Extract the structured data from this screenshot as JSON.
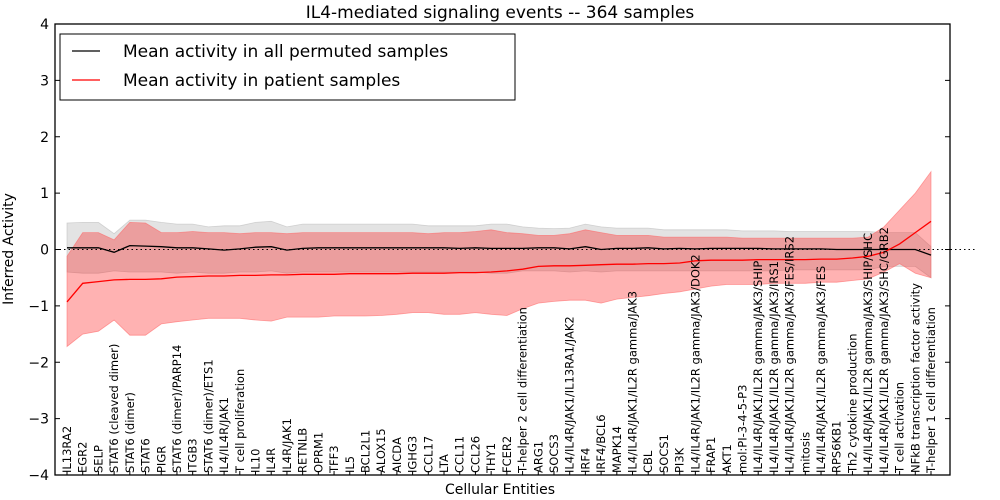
{
  "chart_data": {
    "type": "line",
    "title": "IL4-mediated signaling events -- 364 samples",
    "xlabel": "Cellular Entities",
    "ylabel": "Inferred Activity",
    "ylim": [
      -4,
      4
    ],
    "yticks": [
      "4",
      "3",
      "2",
      "1",
      "0",
      "−1",
      "−2",
      "−3",
      "−4"
    ],
    "ytick_values": [
      4,
      3,
      2,
      1,
      0,
      -1,
      -2,
      -3,
      -4
    ],
    "reference_line": 0,
    "legend": {
      "placement": "top-left",
      "entries": [
        {
          "label": "Mean activity in all permuted samples",
          "color": "#000000"
        },
        {
          "label": "Mean activity in patient samples",
          "color": "#ff0000"
        }
      ]
    },
    "categories": [
      "IL13RA2",
      "EGR2",
      "SELP",
      "STAT6 (cleaved dimer)",
      "STAT6 (dimer)",
      "STAT6",
      "PIGR",
      "STAT6 (dimer)/PARP14",
      "ITGB3",
      "STAT6 (dimer)/ETS1",
      "IL4/IL4R/JAK1",
      "T cell proliferation",
      "IL10",
      "IL4R",
      "IL4R/JAK1",
      "RETNLB",
      "OPRM1",
      "TFF3",
      "IL5",
      "BCL2L1",
      "ALOX15",
      "AICDA",
      "IGHG3",
      "CCL17",
      "LTA",
      "CCL11",
      "CCL26",
      "THY1",
      "FCER2",
      "T-helper 2 cell differentiation",
      "ARG1",
      "SOCS3",
      "IL4/IL4R/JAK1/IL13RA1/JAK2",
      "IRF4",
      "IRF4/BCL6",
      "MAPK14",
      "IL4/IL4R/JAK1/IL2R gamma/JAK3",
      "CBL",
      "SOCS1",
      "PI3K",
      "IL4/IL4R/JAK1/IL2R gamma/JAK3/DOK2",
      "FRAP1",
      "AKT1",
      "mol:PI-3-4-5-P3",
      "IL4/IL4R/JAK1/IL2R gamma/JAK3/SHIP",
      "IL4/IL4R/JAK1/IL2R gamma/JAK3/IRS1",
      "IL4/IL4R/JAK1/IL2R gamma/JAK3/FES/IRS2",
      "mitosis",
      "IL4/IL4R/JAK1/IL2R gamma/JAK3/FES",
      "RPS6KB1",
      "Th2 cytokine production",
      "IL4/IL4R/JAK1/IL2R gamma/JAK3/SHIP/SHC",
      "IL4/IL4R/JAK1/IL2R gamma/JAK3/SHC/GRB2",
      "T cell activation",
      "NFkB transcription factor activity",
      "T-helper 1 cell differentiation"
    ],
    "series": [
      {
        "name": "Mean activity in all permuted samples",
        "color": "#000000",
        "values": [
          0.03,
          0.03,
          0.03,
          -0.05,
          0.07,
          0.06,
          0.05,
          0.03,
          0.03,
          0.01,
          -0.01,
          0.01,
          0.04,
          0.05,
          -0.01,
          0.02,
          0.03,
          0.03,
          0.03,
          0.03,
          0.03,
          0.03,
          0.03,
          0.03,
          0.03,
          0.02,
          0.03,
          0.02,
          0.02,
          0.02,
          0.03,
          0.03,
          0.01,
          0.05,
          0.0,
          0.02,
          0.02,
          0.03,
          0.01,
          0.02,
          0.01,
          0.02,
          0.02,
          0.02,
          0.02,
          0.01,
          0.01,
          0.01,
          0.01,
          0.0,
          0.0,
          0.0,
          0.0,
          0.0,
          0.0,
          -0.1
        ],
        "upper": [
          0.47,
          0.48,
          0.48,
          0.28,
          0.52,
          0.52,
          0.48,
          0.45,
          0.45,
          0.4,
          0.42,
          0.42,
          0.48,
          0.5,
          0.4,
          0.45,
          0.45,
          0.45,
          0.45,
          0.45,
          0.45,
          0.45,
          0.45,
          0.42,
          0.42,
          0.42,
          0.42,
          0.45,
          0.45,
          0.4,
          0.38,
          0.37,
          0.38,
          0.45,
          0.4,
          0.38,
          0.38,
          0.38,
          0.35,
          0.35,
          0.35,
          0.35,
          0.35,
          0.33,
          0.33,
          0.33,
          0.32,
          0.32,
          0.32,
          0.32,
          0.32,
          0.32,
          0.3,
          0.3,
          0.3,
          0.05
        ],
        "lower": [
          -0.4,
          -0.42,
          -0.42,
          -0.38,
          -0.4,
          -0.4,
          -0.4,
          -0.42,
          -0.4,
          -0.42,
          -0.42,
          -0.4,
          -0.4,
          -0.38,
          -0.42,
          -0.4,
          -0.4,
          -0.4,
          -0.4,
          -0.4,
          -0.4,
          -0.4,
          -0.4,
          -0.4,
          -0.4,
          -0.4,
          -0.4,
          -0.42,
          -0.42,
          -0.38,
          -0.38,
          -0.38,
          -0.4,
          -0.38,
          -0.4,
          -0.38,
          -0.38,
          -0.38,
          -0.38,
          -0.38,
          -0.38,
          -0.38,
          -0.38,
          -0.38,
          -0.38,
          -0.38,
          -0.36,
          -0.36,
          -0.36,
          -0.36,
          -0.36,
          -0.36,
          -0.3,
          -0.3,
          -0.3,
          -0.5
        ]
      },
      {
        "name": "Mean activity in patient samples",
        "color": "#ff0000",
        "values": [
          -0.93,
          -0.6,
          -0.57,
          -0.54,
          -0.53,
          -0.53,
          -0.52,
          -0.49,
          -0.48,
          -0.47,
          -0.47,
          -0.46,
          -0.46,
          -0.45,
          -0.45,
          -0.44,
          -0.44,
          -0.44,
          -0.43,
          -0.43,
          -0.43,
          -0.43,
          -0.42,
          -0.42,
          -0.42,
          -0.41,
          -0.41,
          -0.4,
          -0.38,
          -0.35,
          -0.3,
          -0.29,
          -0.29,
          -0.28,
          -0.27,
          -0.26,
          -0.26,
          -0.25,
          -0.25,
          -0.24,
          -0.2,
          -0.19,
          -0.19,
          -0.19,
          -0.18,
          -0.18,
          -0.18,
          -0.18,
          -0.17,
          -0.17,
          -0.15,
          -0.12,
          -0.05,
          0.1,
          0.3,
          0.5
        ],
        "upper": [
          -0.12,
          0.3,
          0.3,
          0.17,
          0.48,
          0.47,
          0.3,
          0.3,
          0.32,
          0.3,
          0.3,
          0.28,
          0.3,
          0.3,
          0.28,
          0.3,
          0.3,
          0.3,
          0.3,
          0.3,
          0.3,
          0.3,
          0.3,
          0.28,
          0.3,
          0.3,
          0.32,
          0.35,
          0.3,
          0.28,
          0.25,
          0.25,
          0.28,
          0.35,
          0.3,
          0.25,
          0.25,
          0.25,
          0.22,
          0.22,
          0.22,
          0.22,
          0.22,
          0.2,
          0.2,
          0.2,
          0.2,
          0.2,
          0.2,
          0.2,
          0.2,
          0.22,
          0.4,
          0.7,
          1.0,
          1.38
        ],
        "lower": [
          -1.72,
          -1.5,
          -1.45,
          -1.25,
          -1.52,
          -1.52,
          -1.32,
          -1.28,
          -1.25,
          -1.22,
          -1.22,
          -1.22,
          -1.25,
          -1.27,
          -1.2,
          -1.2,
          -1.2,
          -1.18,
          -1.18,
          -1.18,
          -1.17,
          -1.15,
          -1.12,
          -1.12,
          -1.15,
          -1.15,
          -1.12,
          -1.15,
          -1.17,
          -1.05,
          -0.95,
          -0.92,
          -0.9,
          -0.9,
          -0.95,
          -0.88,
          -0.85,
          -0.82,
          -0.78,
          -0.75,
          -0.7,
          -0.65,
          -0.62,
          -0.62,
          -0.62,
          -0.6,
          -0.6,
          -0.6,
          -0.58,
          -0.58,
          -0.55,
          -0.52,
          -0.4,
          -0.25,
          -0.42,
          -0.5
        ]
      }
    ]
  }
}
